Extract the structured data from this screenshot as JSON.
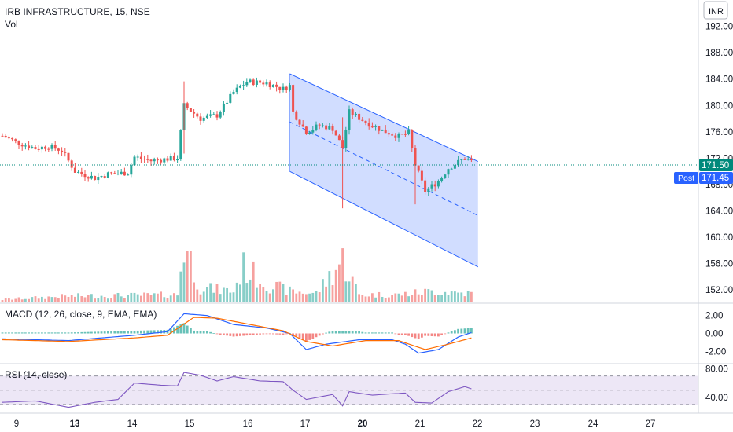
{
  "header": {
    "symbol_title": "IRB INFRASTRUCTURE, 15, NSE",
    "volume_label": "Vol",
    "currency": "INR"
  },
  "price_pane": {
    "y_ticks": [
      "192.00",
      "188.00",
      "184.00",
      "180.00",
      "176.00",
      "172.00",
      "168.00",
      "164.00",
      "160.00",
      "156.00",
      "152.00"
    ],
    "last_price": "171.50",
    "post_label": "Post",
    "post_price": "171.45",
    "colors": {
      "up": "#26a69a",
      "down": "#ef5350",
      "channel_fill": "#c9d7ff",
      "channel_line": "#2962ff",
      "last_line": "#00897b",
      "post_badge": "#2962ff"
    }
  },
  "macd_pane": {
    "title": "MACD (12, 26, close, 9, EMA, EMA)",
    "y_ticks": [
      "2.00",
      "0.00",
      "-2.00"
    ],
    "colors": {
      "macd": "#2962ff",
      "signal": "#ff6d00"
    }
  },
  "rsi_pane": {
    "title": "RSI (14, close)",
    "y_ticks": [
      "80.00",
      "40.00"
    ],
    "colors": {
      "line": "#7e57c2",
      "band": "#ede7f6"
    }
  },
  "x_axis": {
    "ticks": [
      "9",
      "13",
      "14",
      "15",
      "16",
      "17",
      "20",
      "21",
      "22",
      "23",
      "24",
      "27"
    ],
    "bold_ticks": [
      "13",
      "20"
    ]
  },
  "chart_data": {
    "type": "candlestick",
    "title": "IRB INFRASTRUCTURE, 15, NSE",
    "x_ticks": [
      "9",
      "13",
      "14",
      "15",
      "16",
      "17",
      "20",
      "21",
      "22",
      "23",
      "24",
      "27"
    ],
    "y_range": [
      150,
      196
    ],
    "last_price": 171.5,
    "post_price": 171.45,
    "price_path": [
      [
        0,
        175.4
      ],
      [
        5,
        174.3
      ],
      [
        10,
        173.5
      ],
      [
        14,
        173.8
      ],
      [
        18,
        173.2
      ],
      [
        22,
        170.0
      ],
      [
        28,
        169.0
      ],
      [
        32,
        169.6
      ],
      [
        38,
        169.8
      ],
      [
        40,
        172.2
      ],
      [
        45,
        171.6
      ],
      [
        50,
        171.9
      ],
      [
        53,
        172.0
      ],
      [
        55,
        180.0
      ],
      [
        60,
        178.0
      ],
      [
        65,
        178.5
      ],
      [
        70,
        182.0
      ],
      [
        74,
        183.6
      ],
      [
        80,
        183.4
      ],
      [
        85,
        182.5
      ],
      [
        87,
        183.0
      ],
      [
        88,
        179.0
      ],
      [
        92,
        176.0
      ],
      [
        96,
        177.0
      ],
      [
        100,
        176.5
      ],
      [
        103,
        173.6
      ],
      [
        105,
        179.0
      ],
      [
        110,
        177.5
      ],
      [
        115,
        176.2
      ],
      [
        120,
        175.3
      ],
      [
        123,
        175.8
      ],
      [
        125,
        171.0
      ],
      [
        128,
        167.0
      ],
      [
        132,
        168.5
      ],
      [
        135,
        170.5
      ],
      [
        140,
        172.0
      ],
      [
        142,
        171.5
      ]
    ],
    "channel": {
      "upper": {
        "from": [
          87,
          184.8
        ],
        "to": [
          144,
          171.5
        ]
      },
      "middle": {
        "from": [
          87,
          177.5
        ],
        "to": [
          144,
          163.3
        ]
      },
      "lower": {
        "from": [
          87,
          170.0
        ],
        "to": [
          144,
          155.5
        ]
      }
    },
    "macd": {
      "y_range": [
        -3.2,
        3.2
      ],
      "macd_path": [
        [
          0,
          -0.6
        ],
        [
          20,
          -0.8
        ],
        [
          40,
          -0.2
        ],
        [
          50,
          0.2
        ],
        [
          55,
          2.2
        ],
        [
          62,
          2.0
        ],
        [
          70,
          1.0
        ],
        [
          80,
          0.6
        ],
        [
          87,
          0.0
        ],
        [
          92,
          -1.8
        ],
        [
          98,
          -1.2
        ],
        [
          108,
          -0.7
        ],
        [
          118,
          -0.7
        ],
        [
          122,
          -1.2
        ],
        [
          126,
          -2.2
        ],
        [
          132,
          -1.8
        ],
        [
          138,
          -0.4
        ],
        [
          142,
          0.1
        ]
      ],
      "signal_path": [
        [
          0,
          -0.7
        ],
        [
          20,
          -0.9
        ],
        [
          40,
          -0.5
        ],
        [
          50,
          -0.2
        ],
        [
          58,
          1.8
        ],
        [
          65,
          1.7
        ],
        [
          75,
          1.0
        ],
        [
          85,
          0.3
        ],
        [
          92,
          -0.9
        ],
        [
          100,
          -1.4
        ],
        [
          110,
          -0.8
        ],
        [
          120,
          -0.8
        ],
        [
          128,
          -1.8
        ],
        [
          135,
          -1.2
        ],
        [
          142,
          -0.5
        ]
      ]
    },
    "rsi": {
      "y_range": [
        20,
        85
      ],
      "levels": [
        30,
        50,
        70
      ],
      "path": [
        [
          0,
          33
        ],
        [
          10,
          35
        ],
        [
          20,
          26
        ],
        [
          28,
          33
        ],
        [
          35,
          37
        ],
        [
          40,
          60
        ],
        [
          48,
          57
        ],
        [
          53,
          56
        ],
        [
          55,
          75
        ],
        [
          60,
          71
        ],
        [
          65,
          63
        ],
        [
          70,
          69
        ],
        [
          78,
          63
        ],
        [
          85,
          62
        ],
        [
          88,
          50
        ],
        [
          92,
          37
        ],
        [
          100,
          44
        ],
        [
          103,
          28
        ],
        [
          105,
          48
        ],
        [
          112,
          43
        ],
        [
          118,
          45
        ],
        [
          122,
          46
        ],
        [
          125,
          33
        ],
        [
          130,
          32
        ],
        [
          135,
          48
        ],
        [
          140,
          55
        ],
        [
          142,
          52
        ]
      ]
    },
    "volume_path": [
      [
        0,
        0.3
      ],
      [
        20,
        0.8
      ],
      [
        40,
        0.9
      ],
      [
        53,
        1.0
      ],
      [
        55,
        8.5
      ],
      [
        60,
        2.0
      ],
      [
        70,
        1.5
      ],
      [
        73,
        5.0
      ],
      [
        80,
        2.5
      ],
      [
        87,
        1.5
      ],
      [
        95,
        1.2
      ],
      [
        103,
        6.0
      ],
      [
        108,
        1.0
      ],
      [
        120,
        1.0
      ],
      [
        130,
        1.5
      ],
      [
        142,
        1.2
      ]
    ]
  }
}
